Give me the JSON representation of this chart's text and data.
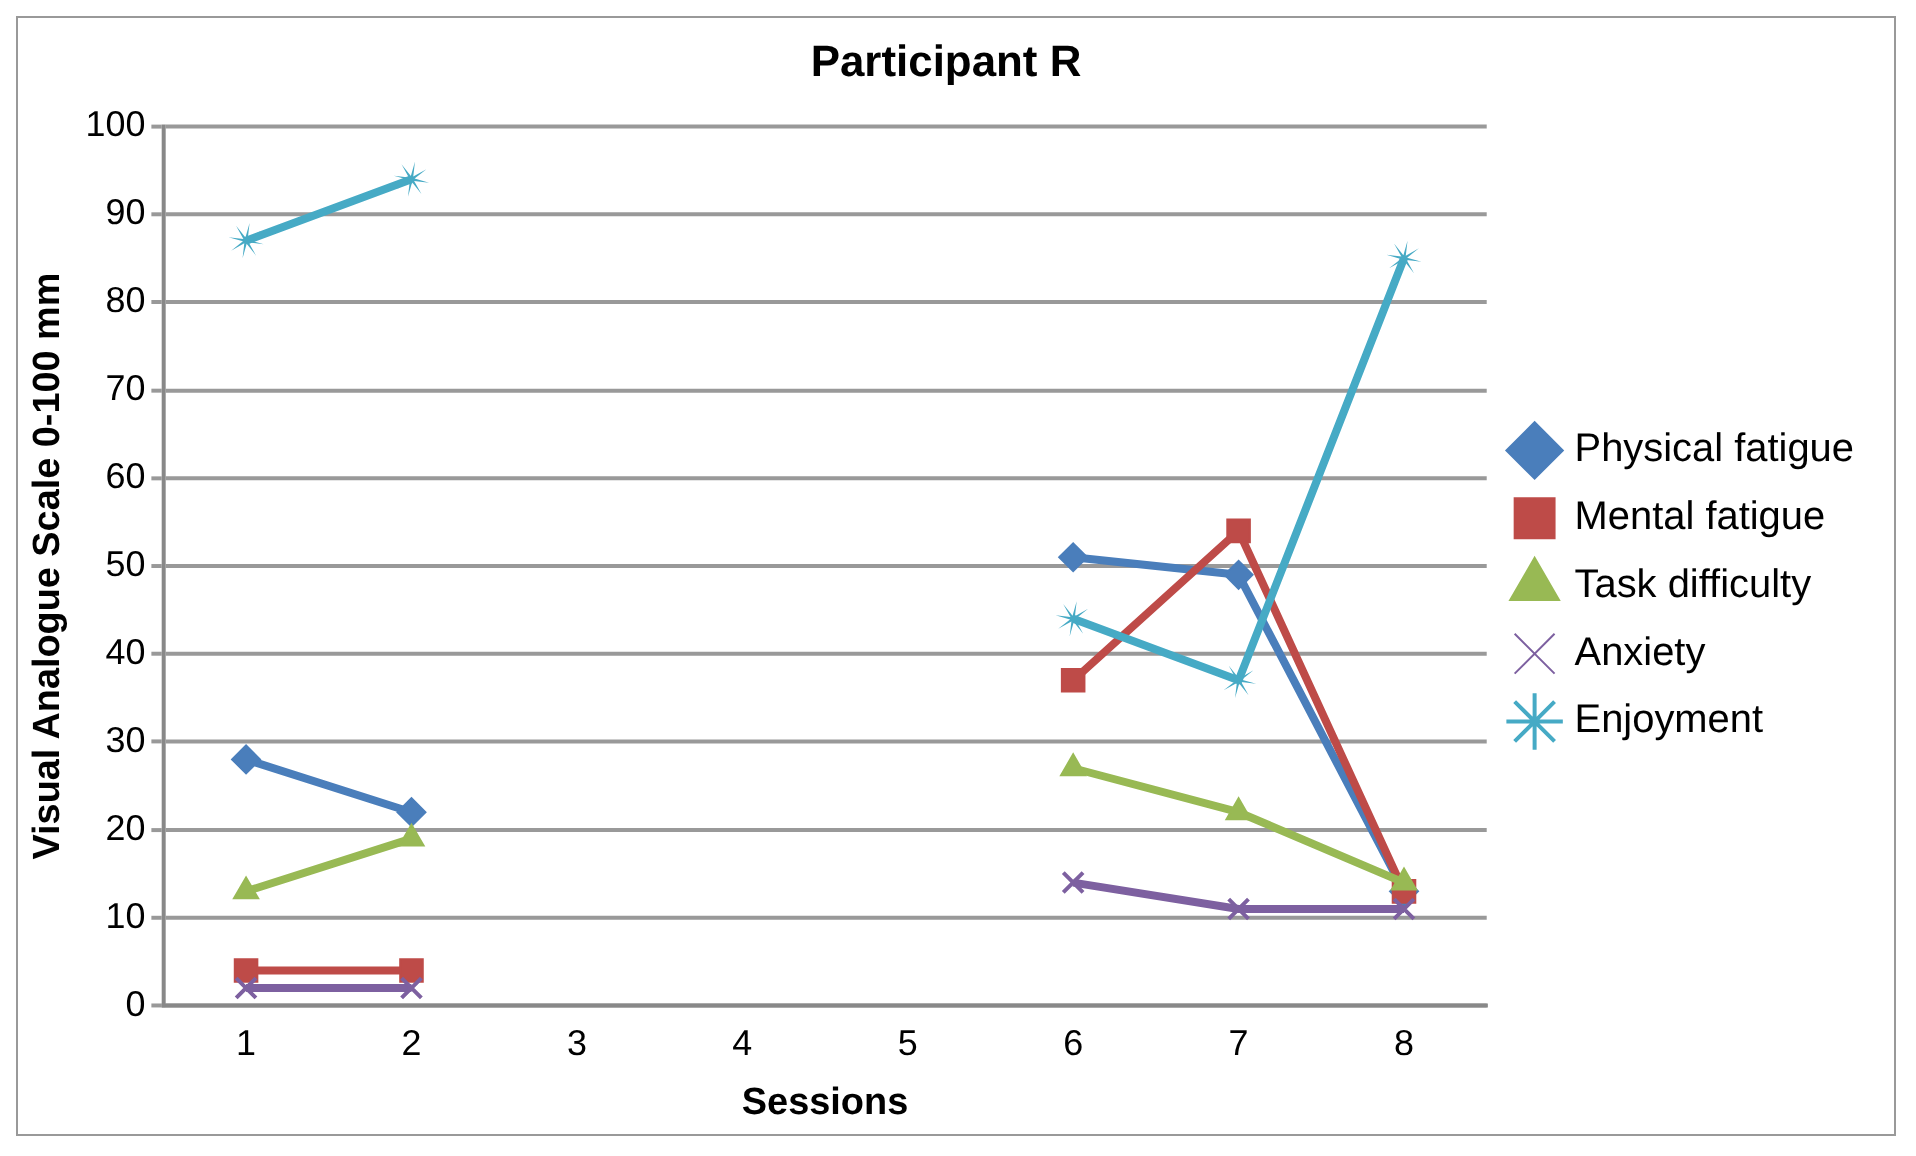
{
  "chart_data": {
    "type": "line",
    "title": "Participant R",
    "xlabel": "Sessions",
    "ylabel": "Visual Analogue Scale 0-100 mm",
    "categories": [
      "1",
      "2",
      "3",
      "4",
      "5",
      "6",
      "7",
      "8"
    ],
    "ylim": [
      0,
      100
    ],
    "yticks": [
      0,
      10,
      20,
      30,
      40,
      50,
      60,
      70,
      80,
      90,
      100
    ],
    "grid": "y",
    "legend": "right",
    "series": [
      {
        "name": "Physical fatigue",
        "color": "#4a7ebb",
        "marker": "diamond",
        "values": [
          28,
          22,
          null,
          null,
          null,
          51,
          49,
          13
        ]
      },
      {
        "name": "Mental fatigue",
        "color": "#be4b48",
        "marker": "square",
        "values": [
          4,
          4,
          null,
          null,
          null,
          37,
          54,
          13
        ]
      },
      {
        "name": "Task difficulty",
        "color": "#98b954",
        "marker": "triangle",
        "values": [
          13,
          19,
          null,
          null,
          null,
          27,
          22,
          14
        ]
      },
      {
        "name": "Anxiety",
        "color": "#7d60a0",
        "marker": "cross",
        "values": [
          2,
          2,
          null,
          null,
          null,
          14,
          11,
          11
        ]
      },
      {
        "name": "Enjoyment",
        "color": "#46aac5",
        "marker": "star",
        "values": [
          87,
          94,
          null,
          null,
          null,
          44,
          37,
          85
        ]
      }
    ]
  }
}
